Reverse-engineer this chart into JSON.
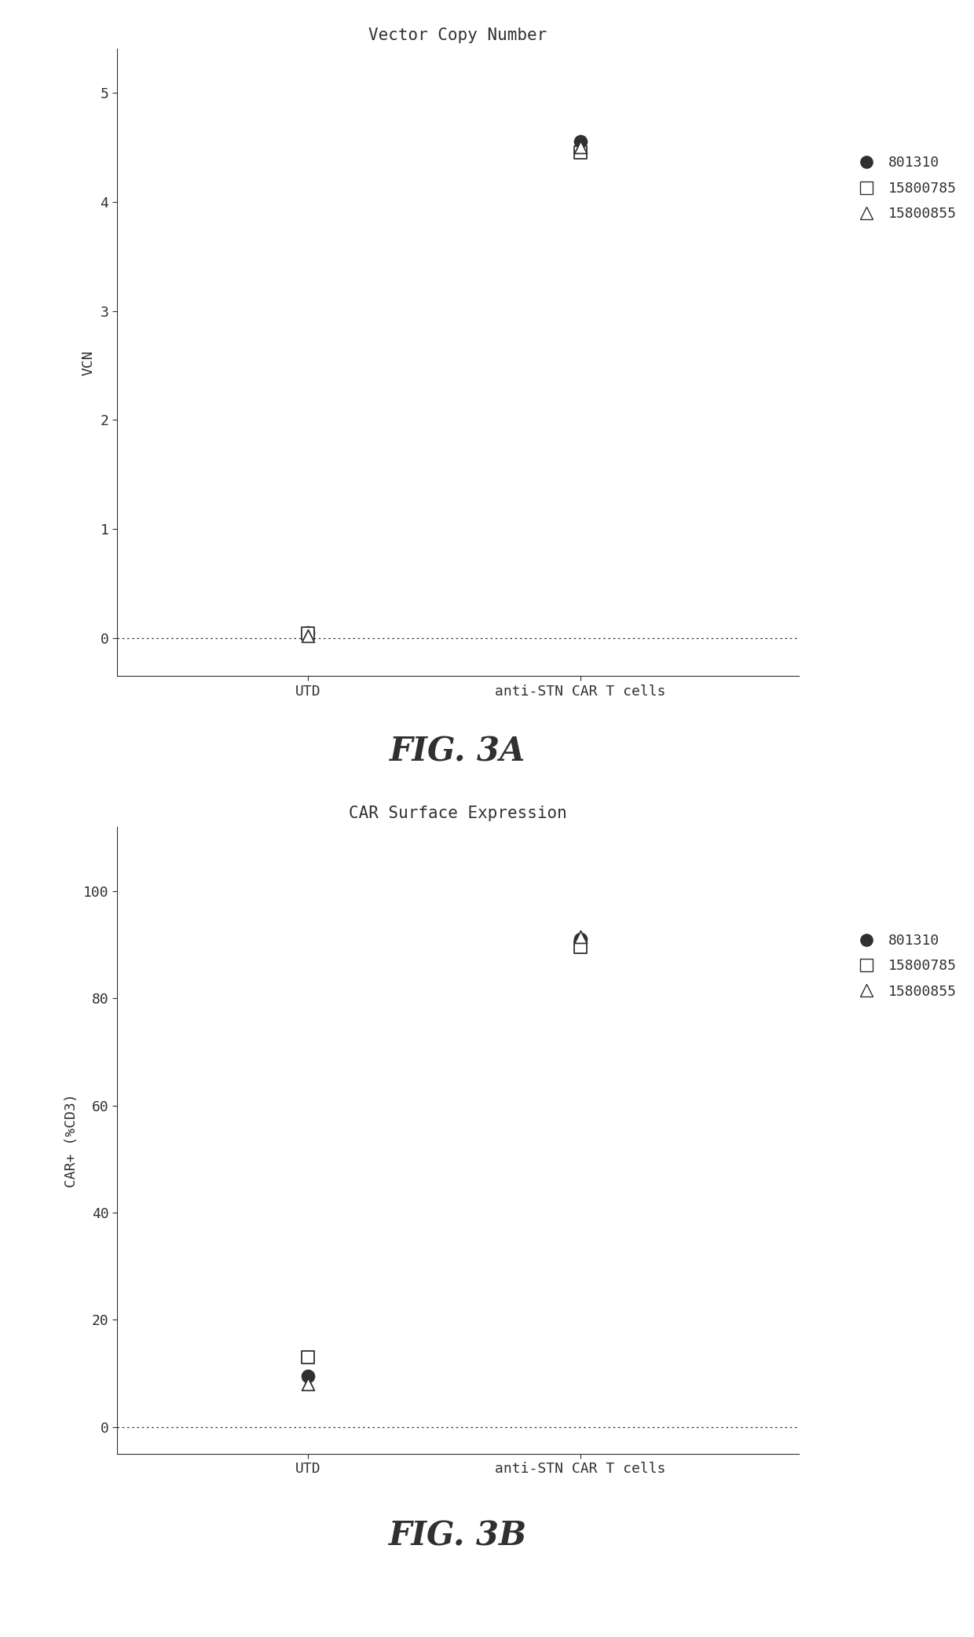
{
  "fig3a": {
    "title": "Vector Copy Number",
    "ylabel": "VCN",
    "yticks": [
      0,
      1,
      2,
      3,
      4,
      5
    ],
    "ylim": [
      -0.35,
      5.4
    ],
    "xlim": [
      0.3,
      2.8
    ],
    "xtick_labels": [
      "UTD",
      "anti-STN CAR T cells"
    ],
    "xtick_positions": [
      1,
      2
    ],
    "series": {
      "801310": {
        "utd": 0.05,
        "antistn": 4.55,
        "marker": "o",
        "filled": true
      },
      "15800785": {
        "utd": 0.04,
        "antistn": 4.45,
        "marker": "s",
        "filled": false
      },
      "15800855": {
        "utd": 0.02,
        "antistn": 4.5,
        "marker": "^",
        "filled": false
      }
    },
    "hline_y": 0,
    "figcaption": "FIG. 3A"
  },
  "fig3b": {
    "title": "CAR Surface Expression",
    "ylabel": "CAR+ (%CD3)",
    "yticks": [
      0,
      20,
      40,
      60,
      80,
      100
    ],
    "ylim": [
      -5,
      112
    ],
    "xlim": [
      0.3,
      2.8
    ],
    "xtick_labels": [
      "UTD",
      "anti-STN CAR T cells"
    ],
    "xtick_positions": [
      1,
      2
    ],
    "series": {
      "801310": {
        "utd": 9.5,
        "antistn": 91.0,
        "marker": "o",
        "filled": true
      },
      "15800785": {
        "utd": 13.0,
        "antistn": 89.5,
        "marker": "s",
        "filled": false
      },
      "15800855": {
        "utd": 8.0,
        "antistn": 91.5,
        "marker": "^",
        "filled": false
      }
    },
    "hline_y": 0,
    "figcaption": "FIG. 3B"
  },
  "marker_size": 130,
  "color_filled": "#303030",
  "color_empty": "#303030",
  "font_color": "#303030",
  "background_color": "#ffffff",
  "title_fontsize": 15,
  "ylabel_fontsize": 13,
  "tick_fontsize": 13,
  "xtick_fontsize": 13,
  "legend_fontsize": 13,
  "caption_fontsize": 30,
  "legend_labels": [
    "801310",
    "15800785",
    "15800855"
  ]
}
